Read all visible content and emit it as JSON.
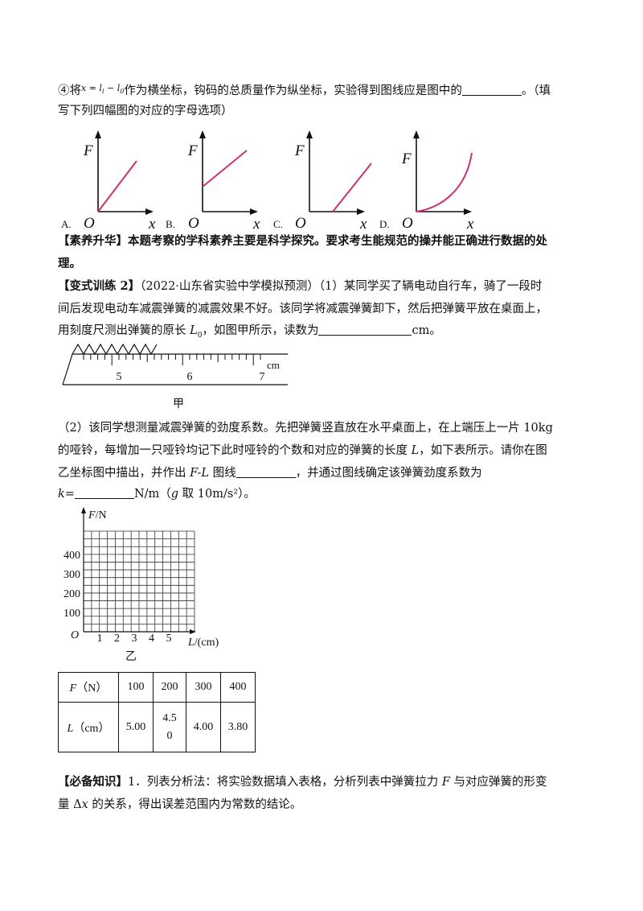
{
  "q4": {
    "prefix": "④将",
    "formula": "x = l",
    "formula_sub1": "i",
    "formula_mid": " − l",
    "formula_sub2": "0",
    "text1": "作为横坐标，钩码的总质量作为纵坐标，实验得到图线应是图中的",
    "text2": "。（填",
    "line2": "写下列四幅图的对应的字母选项）"
  },
  "options": [
    {
      "letter": "A.",
      "y_label": "F",
      "x_label": "x",
      "origin": "O",
      "shape": "line through origin"
    },
    {
      "letter": "B.",
      "y_label": "F",
      "x_label": "x",
      "origin": "O",
      "shape": "line with positive F intercept"
    },
    {
      "letter": "C.",
      "y_label": "F",
      "x_label": "x",
      "origin": "O",
      "shape": "line with positive x intercept"
    },
    {
      "letter": "D.",
      "y_label": "F",
      "x_label": "x",
      "origin": "O",
      "shape": "upward curve"
    }
  ],
  "suyang": {
    "heading": "【素养升华】",
    "text1": "本题考察的学科素养主要是科学探究。要求考生能规范的操并能正确进行数据的处",
    "text2": "理。"
  },
  "bianshi": {
    "heading": "【变式训练 2】",
    "source": "（2022·山东省实验中学模拟预测）",
    "part1_a": "（1）某同学买了辆电动自行车，骑了一段时",
    "line2": "间后发现电动车减震弹簧的减震效果不好。该同学将减震弹簧卸下，然后把弹簧平放在桌面上，",
    "line3_a": "用刻度尺测出弹簧的原长 ",
    "var_L": "L",
    "var_sub": "0",
    "line3_b": "，如图甲所示，读数为",
    "line3_c": "cm。"
  },
  "ruler": {
    "ticks": [
      "5",
      "6",
      "7"
    ],
    "unit": "cm",
    "caption": "甲"
  },
  "part2": {
    "line1": "（2）该同学想测量减震弹簧的劲度系数。先把弹簧竖直放在水平桌面上，在上端压上一片 10kg",
    "line2_a": "的哑铃，每增加一只哑铃均记下此时哑铃的个数和对应的弹簧的长度 ",
    "line2_var": "L",
    "line2_b": "，如下表所示。请你在图",
    "line3_a": "乙坐标图中描出，并作出 ",
    "line3_var": "F-L",
    "line3_b": " 图线",
    "line3_c": "，并通过图线确定该弹簧劲度系数为",
    "line4_a": "k=",
    "line4_b": "N/m（",
    "line4_g": "g",
    "line4_c": " 取 10m/s²）。"
  },
  "graph": {
    "y_label": "F/N",
    "x_label": "L/(cm)",
    "origin": "O",
    "y_ticks": [
      "100",
      "200",
      "300",
      "400"
    ],
    "x_ticks": [
      "1",
      "2",
      "3",
      "4",
      "5"
    ],
    "caption": "乙"
  },
  "table": {
    "row1": [
      "F（N）",
      "100",
      "200",
      "300",
      "400"
    ],
    "row2": [
      "L（cm）",
      "5.00",
      "4.5\n0",
      "4.00",
      "3.80"
    ]
  },
  "bibei": {
    "heading": "【必备知识】",
    "text1_a": "1．列表分析法：将实验数据填入表格，分析列表中弹簧拉力 ",
    "text1_var": "F",
    "text1_b": " 与对应弹簧的形变",
    "text2_a": "量 Δ",
    "text2_var": "x",
    "text2_b": " 的关系，得出误差范围内为常数的结论。"
  },
  "colors": {
    "curve": "#d0306f",
    "ink": "#111111"
  }
}
